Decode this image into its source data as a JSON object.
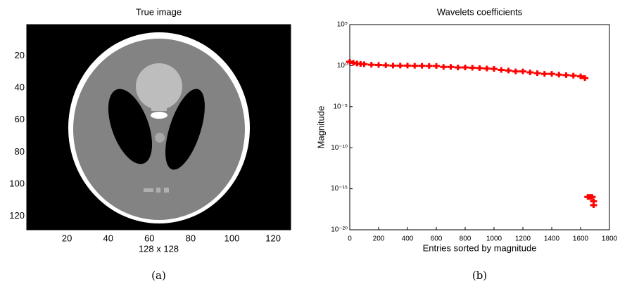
{
  "chart_data": [
    {
      "type": "image",
      "title": "True image",
      "xlabel": "128 x 128",
      "caption": "(a)",
      "xlim": [
        0.5,
        128.5
      ],
      "ylim": [
        128.5,
        0.5
      ],
      "xticks": [
        20,
        40,
        60,
        80,
        100,
        120
      ],
      "yticks": [
        20,
        40,
        60,
        80,
        100,
        120
      ]
    },
    {
      "type": "scatter",
      "title": "Wavelets coefficients",
      "xlabel": "Entries sorted by magnitude",
      "ylabel": "Magnitude",
      "caption": "(b)",
      "log_y": true,
      "xlim": [
        0,
        1800
      ],
      "ylim": [
        1e-20,
        100000
      ],
      "xticks": [
        0,
        200,
        400,
        600,
        800,
        1000,
        1200,
        1400,
        1600,
        1800
      ],
      "yticks": [
        {
          "value": 1e-20,
          "label": "10⁻²⁰"
        },
        {
          "value": 1e-15,
          "label": "10⁻¹⁵"
        },
        {
          "value": 1e-10,
          "label": "10⁻¹⁰"
        },
        {
          "value": 1e-05,
          "label": "10⁻⁵"
        },
        {
          "value": 1,
          "label": "10⁰"
        },
        {
          "value": 100000,
          "label": "10⁵"
        }
      ],
      "series": [
        {
          "color": "#ff0000",
          "x": [
            0,
            25,
            50,
            75,
            100,
            150,
            200,
            250,
            300,
            350,
            400,
            450,
            500,
            550,
            600,
            650,
            700,
            750,
            800,
            850,
            900,
            950,
            1000,
            1050,
            1100,
            1150,
            1200,
            1250,
            1300,
            1350,
            1400,
            1450,
            1500,
            1550,
            1600,
            1630,
            1650,
            1660,
            1670,
            1680,
            1690,
            1690
          ],
          "values": [
            3,
            2.2,
            1.8,
            1.6,
            1.5,
            1.3,
            1.2,
            1.1,
            1.0,
            1.0,
            1.0,
            0.95,
            0.95,
            0.9,
            0.9,
            0.7,
            0.7,
            0.6,
            0.6,
            0.55,
            0.5,
            0.45,
            0.4,
            0.3,
            0.25,
            0.2,
            0.2,
            0.15,
            0.12,
            0.1,
            0.1,
            0.08,
            0.07,
            0.06,
            0.05,
            0.03,
            1e-16,
            1e-16,
            1e-16,
            1e-16,
            3e-17,
            1e-17
          ]
        }
      ]
    }
  ]
}
